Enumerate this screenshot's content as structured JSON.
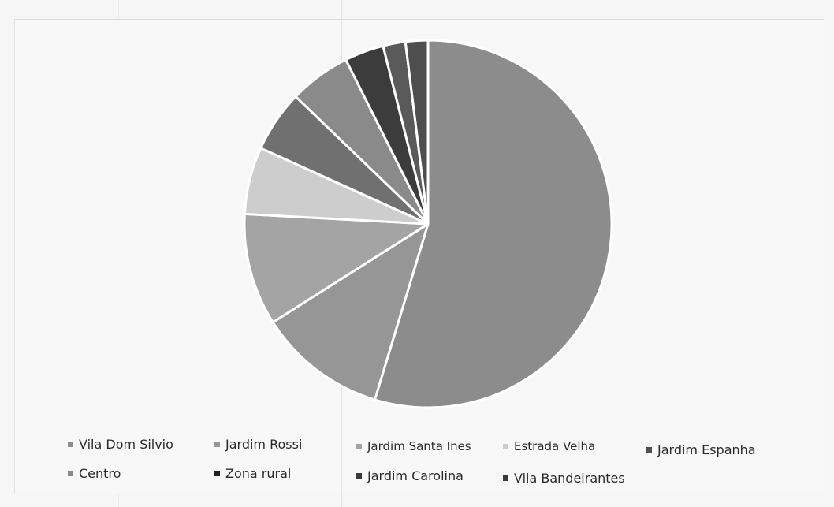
{
  "chart_data": {
    "type": "pie",
    "title": "",
    "categories": [
      "Vila Dom Silvio",
      "Jardim Rossi",
      "Jardim Santa Ines",
      "Estrada Velha",
      "Jardim Espanha",
      "Centro",
      "Zona rural",
      "Jardim Carolina",
      "Vila Bandeirantes"
    ],
    "values": [
      55.5,
      11.5,
      10.0,
      6.0,
      5.5,
      5.5,
      3.5,
      2.0,
      2.0
    ],
    "colors": [
      "#8c8c8c",
      "#969696",
      "#a4a4a4",
      "#cdcdcd",
      "#707070",
      "#8a8a8a",
      "#3c3c3c",
      "#5a5a5a",
      "#4e4e4e"
    ],
    "start_angle_deg": 0,
    "direction": "clockwise",
    "legend_position": "bottom"
  }
}
